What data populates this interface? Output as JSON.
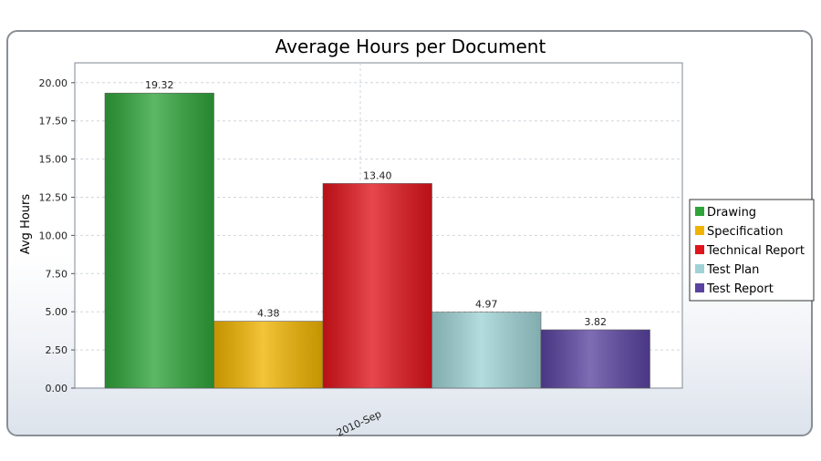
{
  "chart_data": {
    "type": "bar",
    "title": "Average Hours per Document",
    "xlabel": "",
    "ylabel": "Avg Hours",
    "categories": [
      "2010-Sep"
    ],
    "ylim": [
      0,
      21.3
    ],
    "yticks": [
      "0.00",
      "2.50",
      "5.00",
      "7.50",
      "10.00",
      "12.50",
      "15.00",
      "17.50",
      "20.00"
    ],
    "grid": true,
    "legend_position": "right",
    "series": [
      {
        "name": "Drawing",
        "values": [
          19.32
        ],
        "label": "19.32",
        "color": "#2fa43a"
      },
      {
        "name": "Specification",
        "values": [
          4.38
        ],
        "label": "4.38",
        "color": "#f0b400"
      },
      {
        "name": "Technical Report",
        "values": [
          13.4
        ],
        "label": "13.40",
        "color": "#e0141c"
      },
      {
        "name": "Test Plan",
        "values": [
          4.97
        ],
        "label": "4.97",
        "color": "#9fd3d6"
      },
      {
        "name": "Test Report",
        "values": [
          3.82
        ],
        "label": "3.82",
        "color": "#5a43a0"
      }
    ]
  }
}
